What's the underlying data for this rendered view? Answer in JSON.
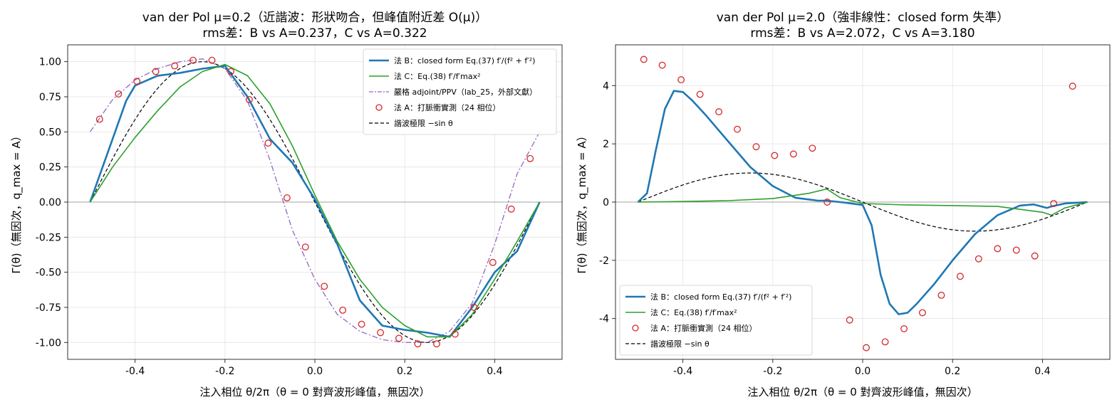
{
  "chart_data": [
    {
      "type": "line",
      "title": "van der Pol μ=0.2（近諧波：形狀吻合，但峰值附近差 O(μ)）",
      "subtitle": "rms差：B vs A=0.237，C vs A=0.322",
      "xlabel": "注入相位 θ/2π（θ = 0 對齊波形峰值，無因次）",
      "ylabel": "Γ(θ)（無因次，q_max = A）",
      "xlim": [
        -0.55,
        0.55
      ],
      "ylim": [
        -1.12,
        1.12
      ],
      "xticks": [
        -0.4,
        -0.2,
        0.0,
        0.2,
        0.4
      ],
      "xtick_labels": [
        "-0.4",
        "-0.2",
        "0.0",
        "0.2",
        "0.4"
      ],
      "yticks": [
        1.0,
        0.75,
        0.5,
        0.25,
        0.0,
        -0.25,
        -0.5,
        -0.75,
        -1.0
      ],
      "ytick_labels": [
        "1.00",
        "0.75",
        "0.50",
        "0.25",
        "0.00",
        "-0.25",
        "-0.50",
        "-0.75",
        "-1.00"
      ],
      "grid": true,
      "legend_position": "top-right",
      "series": [
        {
          "name": "法 B：closed form Eq.(37) f′/(f² + f′²)",
          "style": "line",
          "color": "#1f77b4",
          "x": [
            -0.5,
            -0.45,
            -0.42,
            -0.4,
            -0.35,
            -0.3,
            -0.25,
            -0.2,
            -0.15,
            -0.1,
            -0.05,
            0.0,
            0.05,
            0.1,
            0.15,
            0.2,
            0.25,
            0.3,
            0.35,
            0.4,
            0.45,
            0.5
          ],
          "y": [
            0.0,
            0.45,
            0.72,
            0.83,
            0.9,
            0.92,
            0.95,
            0.97,
            0.75,
            0.45,
            0.28,
            0.02,
            -0.3,
            -0.7,
            -0.88,
            -0.91,
            -0.93,
            -0.96,
            -0.75,
            -0.5,
            -0.35,
            0.0
          ]
        },
        {
          "name": "法 C：Eq.(38) f′/f′max²",
          "style": "line",
          "color": "#2ca02c",
          "x": [
            -0.5,
            -0.45,
            -0.4,
            -0.35,
            -0.3,
            -0.25,
            -0.2,
            -0.15,
            -0.1,
            -0.05,
            0.0,
            0.05,
            0.1,
            0.15,
            0.2,
            0.25,
            0.3,
            0.35,
            0.4,
            0.45,
            0.5
          ],
          "y": [
            0.0,
            0.25,
            0.46,
            0.65,
            0.82,
            0.93,
            0.98,
            0.9,
            0.7,
            0.4,
            0.05,
            -0.28,
            -0.55,
            -0.75,
            -0.88,
            -0.96,
            -0.96,
            -0.8,
            -0.55,
            -0.28,
            0.0
          ]
        },
        {
          "name": "嚴格 adjoint/PPV（lab_25，外部文獻）",
          "style": "dashdot",
          "color": "#9467bd",
          "x": [
            -0.5,
            -0.45,
            -0.4,
            -0.35,
            -0.3,
            -0.25,
            -0.2,
            -0.15,
            -0.1,
            -0.05,
            0.0,
            0.05,
            0.1,
            0.15,
            0.2,
            0.25,
            0.3,
            0.35,
            0.4,
            0.45,
            0.5
          ],
          "y": [
            0.5,
            0.73,
            0.87,
            0.95,
            1.0,
            1.02,
            0.95,
            0.72,
            0.3,
            -0.2,
            -0.55,
            -0.8,
            -0.92,
            -0.98,
            -1.0,
            -1.0,
            -0.92,
            -0.72,
            -0.3,
            0.2,
            0.5
          ]
        },
        {
          "name": "法 A：打脈衝實測（24 相位）",
          "style": "markers",
          "color": "#d62728",
          "x": [
            -0.479,
            -0.437,
            -0.396,
            -0.354,
            -0.312,
            -0.271,
            -0.229,
            -0.187,
            -0.146,
            -0.104,
            -0.062,
            -0.021,
            0.021,
            0.062,
            0.104,
            0.146,
            0.187,
            0.229,
            0.271,
            0.312,
            0.354,
            0.396,
            0.437,
            0.479
          ],
          "y": [
            0.59,
            0.77,
            0.86,
            0.93,
            0.97,
            1.01,
            1.01,
            0.93,
            0.73,
            0.42,
            0.03,
            -0.32,
            -0.6,
            -0.77,
            -0.87,
            -0.93,
            -0.97,
            -1.01,
            -1.01,
            -0.94,
            -0.75,
            -0.43,
            -0.05,
            0.31
          ]
        },
        {
          "name": "諧波極限 −sin θ",
          "style": "dashed",
          "color": "#000000",
          "function": "-sin(2πx)"
        }
      ]
    },
    {
      "type": "line",
      "title": "van der Pol μ=2.0（強非線性：closed form 失準）",
      "subtitle": "rms差：B vs A=2.072，C vs A=3.180",
      "xlabel": "注入相位 θ/2π（θ = 0 對齊波形峰值，無因次）",
      "ylabel": "Γ(θ)（無因次，q_max = A）",
      "xlim": [
        -0.55,
        0.55
      ],
      "ylim": [
        -5.4,
        5.4
      ],
      "xticks": [
        -0.4,
        -0.2,
        0.0,
        0.2,
        0.4
      ],
      "xtick_labels": [
        "-0.4",
        "-0.2",
        "0.0",
        "0.2",
        "0.4"
      ],
      "yticks": [
        4,
        2,
        0,
        -2,
        -4
      ],
      "ytick_labels": [
        "4",
        "2",
        "0",
        "-2",
        "-4"
      ],
      "grid": true,
      "legend_position": "bottom-left",
      "series": [
        {
          "name": "法 B：closed form Eq.(37) f′/(f² + f′²)",
          "style": "line",
          "color": "#1f77b4",
          "x": [
            -0.5,
            -0.48,
            -0.46,
            -0.44,
            -0.42,
            -0.4,
            -0.38,
            -0.35,
            -0.3,
            -0.25,
            -0.2,
            -0.15,
            -0.1,
            -0.08,
            -0.05,
            0.0,
            0.02,
            0.04,
            0.06,
            0.08,
            0.1,
            0.12,
            0.16,
            0.2,
            0.25,
            0.3,
            0.35,
            0.38,
            0.41,
            0.42,
            0.45,
            0.5
          ],
          "y": [
            0.0,
            0.3,
            1.8,
            3.2,
            3.82,
            3.78,
            3.5,
            3.0,
            2.1,
            1.2,
            0.55,
            0.15,
            0.05,
            0.05,
            0.0,
            -0.1,
            -0.8,
            -2.5,
            -3.5,
            -3.85,
            -3.8,
            -3.5,
            -2.8,
            -2.0,
            -1.1,
            -0.45,
            -0.12,
            -0.08,
            -0.2,
            -0.15,
            -0.05,
            0.0
          ]
        },
        {
          "name": "法 C：Eq.(38) f′/f′max²",
          "style": "line",
          "color": "#2ca02c",
          "x": [
            -0.5,
            -0.4,
            -0.3,
            -0.2,
            -0.12,
            -0.08,
            -0.05,
            0.0,
            0.1,
            0.2,
            0.3,
            0.35,
            0.4,
            0.42,
            0.45,
            0.5
          ],
          "y": [
            0.0,
            0.02,
            0.05,
            0.12,
            0.3,
            0.45,
            0.15,
            -0.05,
            -0.1,
            -0.12,
            -0.15,
            -0.25,
            -0.35,
            -0.45,
            -0.2,
            0.0
          ]
        },
        {
          "name": "法 A：打脈衝實測（24 相位）",
          "style": "markers",
          "color": "#d62728",
          "x": [
            -0.487,
            -0.446,
            -0.404,
            -0.362,
            -0.32,
            -0.279,
            -0.237,
            -0.196,
            -0.154,
            -0.112,
            -0.079,
            -0.029,
            0.008,
            0.05,
            0.092,
            0.133,
            0.175,
            0.217,
            0.258,
            0.3,
            0.342,
            0.383,
            0.425,
            0.467
          ],
          "y": [
            4.9,
            4.7,
            4.2,
            3.7,
            3.1,
            2.5,
            1.9,
            1.6,
            1.65,
            1.85,
            0.0,
            -4.05,
            -5.0,
            -4.8,
            -4.35,
            -3.8,
            -3.2,
            -2.55,
            -1.95,
            -1.6,
            -1.65,
            -1.85,
            -0.05,
            3.98
          ]
        },
        {
          "name": "諧波極限 −sin θ",
          "style": "dashed",
          "color": "#000000",
          "function": "-sin(2πx)"
        }
      ]
    }
  ]
}
